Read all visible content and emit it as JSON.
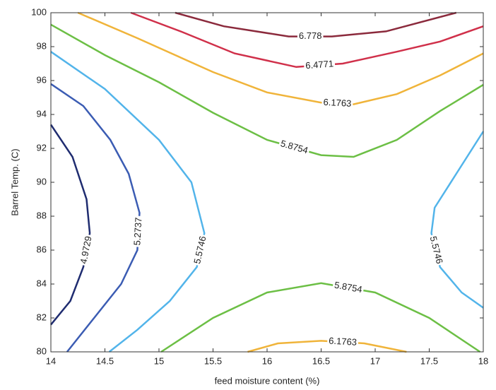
{
  "chart_data": {
    "type": "contour",
    "x_label": "feed moisture content (%)",
    "y_label": "Barrel Temp. (C)",
    "xlim": [
      14,
      18
    ],
    "xticks": [
      14,
      14.5,
      15,
      15.5,
      16,
      16.5,
      17,
      17.5,
      18
    ],
    "ylim": [
      80,
      100
    ],
    "yticks": [
      80,
      82,
      84,
      86,
      88,
      90,
      92,
      94,
      96,
      98,
      100
    ],
    "levels": [
      {
        "value": 4.9729,
        "color": "#1f2c70",
        "lines": [
          {
            "x": [
              14,
              14.2,
              14.33,
              14.36,
              14.3,
              14.18,
              14
            ],
            "y": [
              93.4,
              91.5,
              89,
              87,
              85,
              83,
              81.6
            ]
          }
        ]
      },
      {
        "value": 5.2737,
        "color": "#3b5cb3",
        "lines": [
          {
            "x": [
              14,
              14.3,
              14.55,
              14.72,
              14.82,
              14.8,
              14.65,
              14.4,
              14.15
            ],
            "y": [
              95.8,
              94.5,
              92.5,
              90.5,
              88.2,
              86,
              84,
              82,
              80
            ]
          }
        ]
      },
      {
        "value": 5.5746,
        "color": "#52b4ea",
        "lines": [
          {
            "x": [
              14,
              14.5,
              15,
              15.3,
              15.42,
              15.35,
              15.1,
              14.8,
              14.54
            ],
            "y": [
              97.7,
              95.5,
              92.5,
              90,
              87,
              85,
              83,
              81.3,
              80
            ]
          },
          {
            "x": [
              18,
              17.75,
              17.55,
              17.52,
              17.6,
              17.8,
              18
            ],
            "y": [
              93,
              90.5,
              88.5,
              87,
              85,
              83.5,
              82.6
            ]
          }
        ]
      },
      {
        "value": 5.8754,
        "color": "#6cbf45",
        "lines": [
          {
            "x": [
              14,
              14.5,
              15,
              15.5,
              16,
              16.5,
              16.8,
              17.2,
              17.6,
              18
            ],
            "y": [
              99.3,
              97.5,
              95.9,
              94.1,
              92.5,
              91.6,
              91.5,
              92.5,
              94.2,
              95.75
            ]
          },
          {
            "x": [
              15.02,
              15.5,
              16,
              16.5,
              17,
              17.5,
              17.97
            ],
            "y": [
              80,
              82,
              83.5,
              84.05,
              83.5,
              82,
              80
            ]
          }
        ]
      },
      {
        "value": 6.1763,
        "color": "#f0b43a",
        "lines": [
          {
            "x": [
              14.25,
              14.8,
              15.5,
              16,
              16.5,
              16.8,
              17.2,
              17.6,
              18
            ],
            "y": [
              100,
              98.5,
              96.5,
              95.3,
              94.7,
              94.6,
              95.2,
              96.3,
              97.6
            ]
          },
          {
            "x": [
              15.82,
              16.1,
              16.5,
              16.9,
              17.29
            ],
            "y": [
              80,
              80.5,
              80.65,
              80.5,
              80
            ]
          }
        ]
      },
      {
        "value": 6.4771,
        "color": "#d0304a",
        "lines": [
          {
            "x": [
              14.74,
              15.2,
              15.7,
              16.27,
              16.7,
              17.2,
              17.6,
              18
            ],
            "y": [
              100,
              98.9,
              97.6,
              96.8,
              97,
              97.7,
              98.3,
              99.2
            ]
          }
        ]
      },
      {
        "value": 6.778,
        "color": "#8b2a3c",
        "lines": [
          {
            "x": [
              15.15,
              15.6,
              16.2,
              16.6,
              17.1,
              17.75
            ],
            "y": [
              100,
              99.2,
              98.6,
              98.6,
              98.9,
              100
            ]
          }
        ]
      }
    ]
  }
}
